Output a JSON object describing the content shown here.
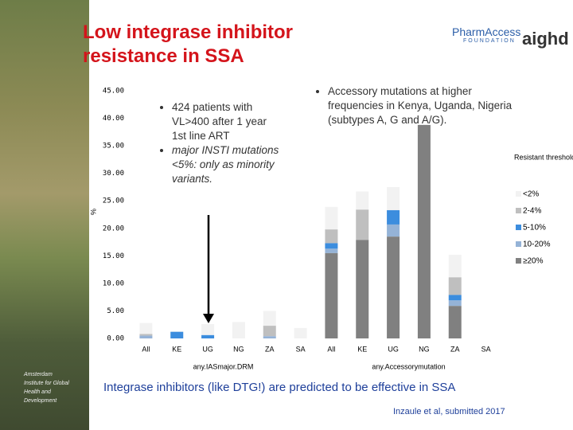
{
  "slide": {
    "title": "Low integrase inhibitor resistance in SSA",
    "logo_main": "PharmAccess",
    "logo_sub": "FOUNDATION",
    "logo_right": "aighd",
    "institute": "Amsterdam Institute for Global Health and Development",
    "bullets_left": [
      "424 patients with VL>400 after 1 year 1st line ART",
      "major INSTI mutations <5%: only as minority variants."
    ],
    "bullet_right": "Accessory mutations at higher frequencies in Kenya, Uganda, Nigeria (subtypes A, G and A/G).",
    "conclusion": "Integrase inhibitors (like DTG!) are predicted to be effective in SSA",
    "citation": "Inzaule et al, submitted 2017"
  },
  "chart_data": {
    "type": "stacked_bar",
    "y_label": "%",
    "legend_title": "Resistant threshold",
    "categories": [
      "All",
      "KE",
      "UG",
      "NG",
      "ZA",
      "SA",
      "All",
      "KE",
      "UG",
      "NG",
      "ZA",
      "SA"
    ],
    "groups": [
      "any.IASmajor.DRM",
      "any.Accessorymutation"
    ],
    "series": [
      {
        "name": "≥20%",
        "color": "#808080",
        "values": [
          0,
          0,
          0,
          0,
          0,
          0,
          15.5,
          17.9,
          18.5,
          38.8,
          5.9,
          0
        ]
      },
      {
        "name": "10-20%",
        "color": "#95b3d7",
        "values": [
          0.5,
          0,
          0,
          0,
          0.4,
          0,
          0.8,
          0,
          2.2,
          0,
          1.0,
          0
        ]
      },
      {
        "name": "5-10%",
        "color": "#3c8dde",
        "values": [
          0,
          1.2,
          0.6,
          0,
          0,
          0,
          1.0,
          0,
          2.6,
          0,
          1.0,
          0
        ]
      },
      {
        "name": "2-4%",
        "color": "#bfbfbf",
        "values": [
          0.3,
          0,
          0,
          0,
          1.9,
          0,
          2.5,
          5.5,
          0,
          0,
          3.2,
          0
        ]
      },
      {
        "name": "<2%",
        "color": "#f2f2f2",
        "values": [
          2.0,
          0.1,
          2.0,
          3.0,
          2.7,
          1.9,
          4.1,
          3.3,
          4.2,
          0,
          4.1,
          0
        ]
      }
    ],
    "ylim": [
      0,
      45
    ],
    "yticks": [
      {
        "value": 0,
        "label": "0.00"
      },
      {
        "value": 5,
        "label": "5.00"
      },
      {
        "value": 10,
        "label": "10.00"
      },
      {
        "value": 15,
        "label": "15.00"
      },
      {
        "value": 20,
        "label": "20.00"
      },
      {
        "value": 25,
        "label": "25.00"
      },
      {
        "value": 30,
        "label": "30.00"
      },
      {
        "value": 35,
        "label": "35.00"
      },
      {
        "value": 40,
        "label": "40.00"
      },
      {
        "value": 45,
        "label": "45.00"
      }
    ]
  }
}
